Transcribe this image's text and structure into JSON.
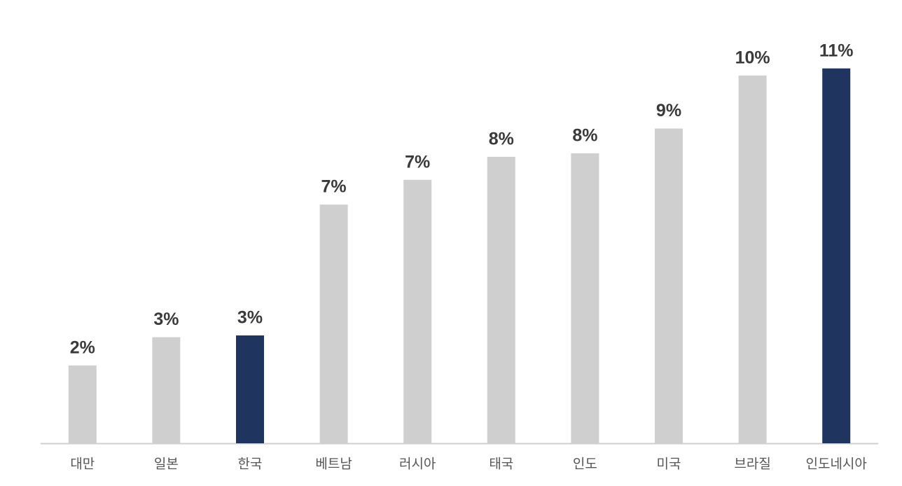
{
  "chart_data": {
    "type": "bar",
    "categories": [
      "대만",
      "일본",
      "한국",
      "베트남",
      "러시아",
      "태국",
      "인도",
      "미국",
      "브라질",
      "인도네시아"
    ],
    "values": [
      2.2,
      3.0,
      3.05,
      6.75,
      7.45,
      8.1,
      8.2,
      8.9,
      10.4,
      10.6
    ],
    "value_labels": [
      "2%",
      "3%",
      "3%",
      "7%",
      "7%",
      "8%",
      "8%",
      "9%",
      "10%",
      "11%"
    ],
    "colors": [
      "#d0cfcf",
      "#d0cfcf",
      "#1f3560",
      "#d0cfcf",
      "#d0cfcf",
      "#d0cfcf",
      "#d0cfcf",
      "#d0cfcf",
      "#d0cfcf",
      "#1f3560"
    ],
    "ylim": [
      0,
      12
    ]
  }
}
